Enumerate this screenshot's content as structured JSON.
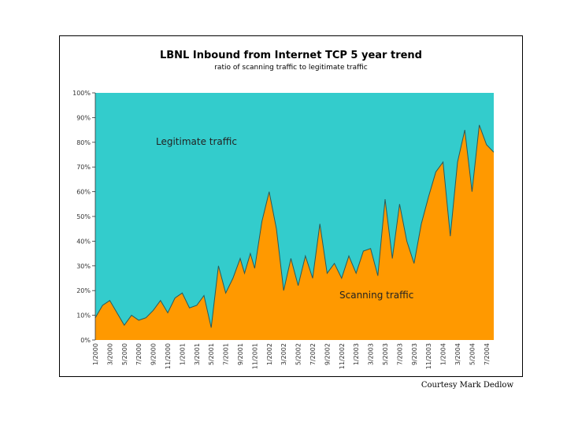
{
  "chart_data": {
    "type": "area",
    "title": "LBNL Inbound from Internet TCP 5 year trend",
    "subtitle": "ratio of scanning traffic to legitimate traffic",
    "xlabel": "",
    "ylabel": "",
    "ylim": [
      0,
      100
    ],
    "y_ticks": [
      "0%",
      "10%",
      "20%",
      "30%",
      "40%",
      "50%",
      "60%",
      "70%",
      "80%",
      "90%",
      "100%"
    ],
    "x_ticks": [
      "1/2000",
      "3/2000",
      "5/2000",
      "7/2000",
      "9/2000",
      "11/2000",
      "1/2001",
      "3/2001",
      "5/2001",
      "7/2001",
      "9/2001",
      "11/2001",
      "1/2002",
      "3/2002",
      "5/2002",
      "7/2002",
      "9/2002",
      "11/2002",
      "1/2003",
      "3/2003",
      "5/2003",
      "7/2003",
      "9/2003",
      "11/2003",
      "1/2004",
      "3/2004",
      "5/2004",
      "7/2004"
    ],
    "annotations": [
      "Legitimate traffic",
      "Scanning  traffic"
    ],
    "series": [
      {
        "name": "Scanning  traffic",
        "color": "#ff9900",
        "x_index": [
          0,
          0.5,
          1,
          1.5,
          2,
          2.5,
          3,
          3.5,
          4,
          4.5,
          5,
          5.5,
          6,
          6.5,
          7,
          7.5,
          8,
          8.5,
          9,
          9.5,
          10,
          10.3,
          10.7,
          11,
          11.5,
          12,
          12.5,
          13,
          13.5,
          14,
          14.5,
          15,
          15.5,
          16,
          16.5,
          17,
          17.5,
          18,
          18.5,
          19,
          19.5,
          20,
          20.5,
          21,
          21.5,
          22,
          22.5,
          23,
          23.5,
          24,
          24.5,
          25,
          25.5,
          26,
          26.5,
          27,
          27.5
        ],
        "values": [
          9,
          14,
          16,
          11,
          6,
          10,
          8,
          9,
          12,
          16,
          11,
          17,
          19,
          13,
          14,
          18,
          5,
          30,
          19,
          25,
          33,
          27,
          35,
          29,
          48,
          60,
          45,
          20,
          33,
          22,
          34,
          25,
          47,
          27,
          31,
          25,
          34,
          27,
          36,
          37,
          26,
          57,
          33,
          55,
          40,
          31,
          47,
          58,
          68,
          72,
          42,
          72,
          85,
          60,
          87,
          79,
          76
        ]
      },
      {
        "name": "Legitimate traffic",
        "color": "#33cccc",
        "values_note": "remainder to 100%"
      }
    ],
    "grid": false,
    "legend": "inline labels"
  },
  "credit": "Courtesy Mark Dedlow"
}
